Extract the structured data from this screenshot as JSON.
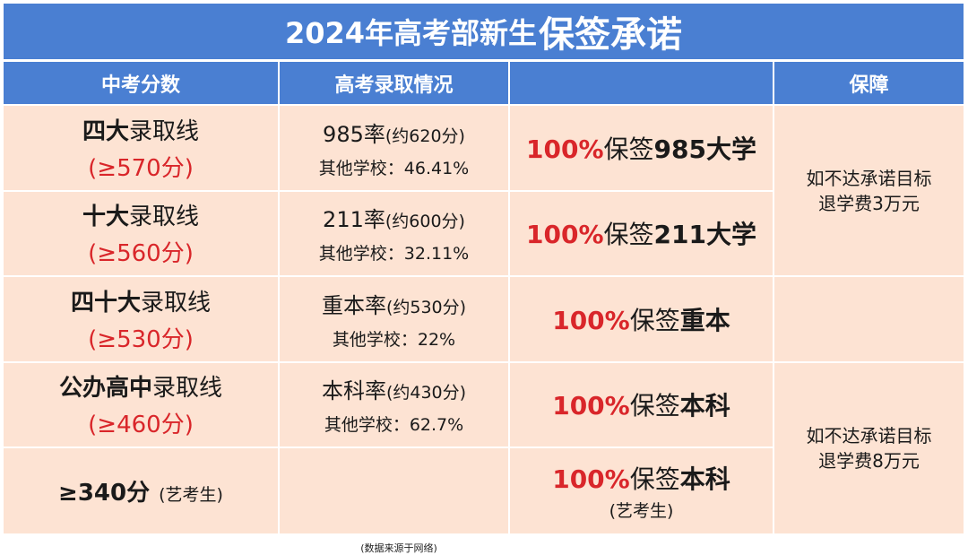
{
  "title": {
    "part1": "2024年高考部新生",
    "part2": "保签承诺"
  },
  "headers": {
    "col1": "中考分数",
    "col2": "高考录取情况",
    "col3": "",
    "col4": "保障"
  },
  "rows": [
    {
      "name_bold": "四大",
      "name_rest": "录取线",
      "score": "(≥570分)",
      "rate": "985率",
      "rate_paren": "(约620分)",
      "other": "其他学校：46.41%",
      "pct": "100%",
      "promise_mid": "保签",
      "promise_bold": "985大学"
    },
    {
      "name_bold": "十大",
      "name_rest": "录取线",
      "score": "(≥560分)",
      "rate": "211率",
      "rate_paren": "(约600分)",
      "other": "其他学校：32.11%",
      "pct": "100%",
      "promise_mid": "保签",
      "promise_bold": "211大学"
    },
    {
      "name_bold": "四十大",
      "name_rest": "录取线",
      "score": "(≥530分)",
      "rate": "重本率",
      "rate_paren": "(约530分)",
      "other": "其他学校：22%",
      "pct": "100%",
      "promise_mid": "保签",
      "promise_bold": "重本"
    },
    {
      "name_bold": "公办高中",
      "name_rest": "录取线",
      "score": "(≥460分)",
      "rate": "本科率",
      "rate_paren": "(约430分)",
      "other": "其他学校：62.7%",
      "pct": "100%",
      "promise_mid": "保签",
      "promise_bold": "本科"
    },
    {
      "art_score": "≥340分",
      "art_note": "(艺考生)",
      "pct": "100%",
      "promise_mid": "保签",
      "promise_bold": "本科",
      "promise_sub": "(艺考生)"
    }
  ],
  "guarantees": [
    {
      "line1": "如不达承诺目标",
      "line2": "退学费3万元"
    },
    {
      "line1": "如不达承诺目标",
      "line2": "退学费8万元"
    }
  ],
  "footnote": "(数据来源于网络)",
  "colors": {
    "header_blue": "#4a7fd2",
    "cell_peach": "#fde3d3",
    "accent_red": "#d9262a"
  }
}
